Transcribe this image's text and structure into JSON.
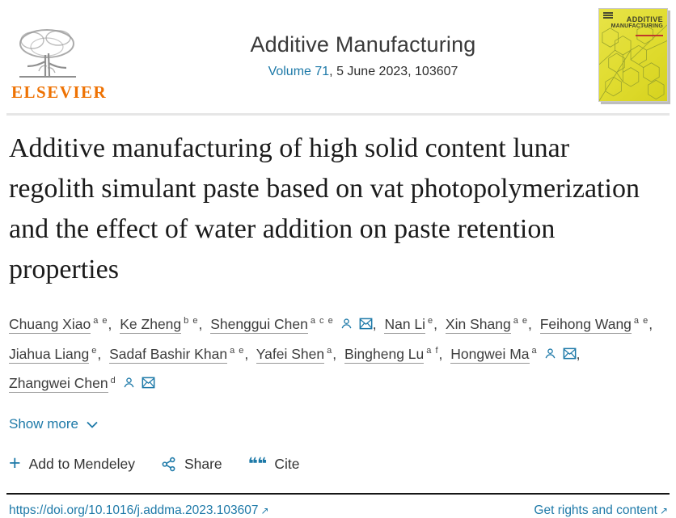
{
  "header": {
    "logo_word": "ELSEVIER",
    "journal_title": "Additive Manufacturing",
    "volume_link": "Volume 71",
    "issue_rest": ", 5 June 2023, 103607",
    "cover": {
      "title_line1": "ADDITIVE",
      "title_line2": "MANUFACTURING"
    }
  },
  "article": {
    "title": "Additive manufacturing of high solid content lunar regolith simulant paste based on vat photopolymerization and the effect of water addition on paste retention properties",
    "authors": [
      {
        "name": "Chuang Xiao",
        "sup": "a e",
        "icons": [],
        "trailing": ","
      },
      {
        "name": "Ke Zheng",
        "sup": "b e",
        "icons": [],
        "trailing": ","
      },
      {
        "name": "Shenggui Chen",
        "sup": "a c e",
        "icons": [
          "person",
          "mail"
        ],
        "trailing": ","
      },
      {
        "name": "Nan Li",
        "sup": "e",
        "icons": [],
        "trailing": ","
      },
      {
        "name": "Xin Shang",
        "sup": "a e",
        "icons": [],
        "trailing": ","
      },
      {
        "name": "Feihong Wang",
        "sup": "a e",
        "icons": [],
        "trailing": ",",
        "break_after": true
      },
      {
        "name": "Jiahua Liang",
        "sup": "e",
        "icons": [],
        "trailing": ","
      },
      {
        "name": "Sadaf Bashir Khan",
        "sup": "a e",
        "icons": [],
        "trailing": ","
      },
      {
        "name": "Yafei Shen",
        "sup": "a",
        "icons": [],
        "trailing": ","
      },
      {
        "name": "Bingheng Lu",
        "sup": "a f",
        "icons": [],
        "trailing": ","
      },
      {
        "name": "Hongwei Ma",
        "sup": "a",
        "icons": [
          "person",
          "mail"
        ],
        "trailing": ",",
        "break_after": true
      },
      {
        "name": "Zhangwei Chen",
        "sup": "d",
        "icons": [
          "person",
          "mail"
        ],
        "trailing": ""
      }
    ],
    "show_more_label": "Show more"
  },
  "toolbar": {
    "mendeley_label": "Add to Mendeley",
    "share_label": "Share",
    "cite_label": "Cite",
    "plus_glyph": "+",
    "cite_glyph": "❝❝"
  },
  "footer": {
    "doi": "https://doi.org/10.1016/j.addma.2023.103607",
    "rights_label": "Get rights and content",
    "external_arrow": "↗"
  },
  "colors": {
    "accent": "#1d79a8",
    "elsevier_orange": "#ee7203",
    "cover_yellow": "#e0dc2f"
  }
}
